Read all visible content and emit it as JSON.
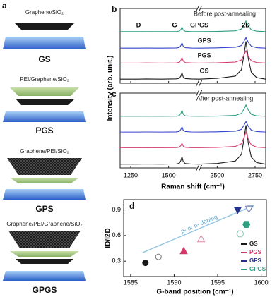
{
  "panel_a": {
    "label": "a",
    "items": [
      {
        "layers": "Graphene/SiO₂",
        "name": "GS"
      },
      {
        "layers": "PEI/Graphene/SiO₂",
        "name": "PGS"
      },
      {
        "layers": "Graphene/PEI/SiO₂",
        "name": "GPS"
      },
      {
        "layers": "Graphene/PEI/Graphene/SiO₂",
        "name": "GPGS"
      }
    ]
  },
  "chart_data": [
    {
      "type": "line",
      "panel_label": "b",
      "title": "Before post-annealing",
      "ylabel": "Intensity (arb. unit.)",
      "peak_labels": [
        "D",
        "G",
        "2D"
      ],
      "series_labels": true,
      "xtick_labels": false,
      "xlim": [
        1180,
        2820
      ],
      "xbreak": [
        1700,
        2380
      ],
      "xticks": [
        1250,
        1500,
        2500,
        2750
      ],
      "ylim": [
        0,
        10
      ],
      "x": [
        1180,
        1300,
        1350,
        1450,
        1550,
        1570,
        1580,
        1588,
        1596,
        1610,
        1650,
        1700,
        2380,
        2500,
        2620,
        2660,
        2675,
        2690,
        2705,
        2725,
        2760,
        2820
      ],
      "series": [
        {
          "name": "GS",
          "color": "#1a1a1a",
          "values": [
            0.55,
            0.55,
            0.57,
            0.55,
            0.58,
            0.65,
            0.93,
            1.4,
            0.85,
            0.62,
            0.57,
            0.55,
            0.55,
            0.65,
            0.95,
            1.81,
            3.58,
            5.6,
            3.33,
            1.46,
            0.75,
            0.55
          ]
        },
        {
          "name": "PGS",
          "color": "#d4386a",
          "values": [
            2.7,
            2.7,
            2.72,
            2.7,
            2.72,
            2.79,
            3.04,
            3.45,
            2.96,
            2.76,
            2.72,
            2.7,
            2.7,
            2.73,
            2.83,
            3.11,
            3.69,
            4.35,
            3.61,
            3.0,
            2.77,
            2.7
          ]
        },
        {
          "name": "GPS",
          "color": "#3344cc",
          "values": [
            4.7,
            4.7,
            4.71,
            4.7,
            4.72,
            4.78,
            5.02,
            5.4,
            4.95,
            4.76,
            4.71,
            4.7,
            4.7,
            4.73,
            4.81,
            5.05,
            5.54,
            6.1,
            5.47,
            4.95,
            4.76,
            4.7
          ]
        },
        {
          "name": "GPGS",
          "color": "#2f9e80",
          "values": [
            6.9,
            6.9,
            6.91,
            6.9,
            6.92,
            6.97,
            7.17,
            7.5,
            7.11,
            6.95,
            6.91,
            6.9,
            6.9,
            6.93,
            7.01,
            7.25,
            7.74,
            8.3,
            7.67,
            7.15,
            6.96,
            6.9
          ]
        }
      ]
    },
    {
      "type": "line",
      "panel_label": "c",
      "title": "After post-annealing",
      "xlabel": "Raman shift (cm⁻¹)",
      "series_labels": false,
      "xtick_labels": true,
      "xlim": [
        1180,
        2820
      ],
      "xbreak": [
        1700,
        2380
      ],
      "xticks": [
        1250,
        1500,
        2500,
        2750
      ],
      "ylim": [
        0,
        10
      ],
      "x": [
        1180,
        1300,
        1350,
        1450,
        1550,
        1570,
        1580,
        1588,
        1596,
        1610,
        1650,
        1700,
        2380,
        2500,
        2620,
        2660,
        2675,
        2690,
        2705,
        2725,
        2760,
        2820
      ],
      "series": [
        {
          "name": "GS",
          "color": "#1a1a1a",
          "values": [
            0.5,
            0.5,
            0.52,
            0.5,
            0.53,
            0.62,
            0.95,
            1.5,
            0.85,
            0.58,
            0.52,
            0.5,
            0.5,
            0.6,
            0.92,
            1.8,
            3.62,
            5.7,
            3.36,
            1.44,
            0.71,
            0.5
          ]
        },
        {
          "name": "PGS",
          "color": "#d4386a",
          "values": [
            2.7,
            2.7,
            2.71,
            2.7,
            2.72,
            2.77,
            2.97,
            3.3,
            2.91,
            2.75,
            2.71,
            2.7,
            2.7,
            2.74,
            2.87,
            3.23,
            3.96,
            4.8,
            3.86,
            3.08,
            2.78,
            2.7
          ]
        },
        {
          "name": "GPS",
          "color": "#3344cc",
          "values": [
            4.8,
            4.8,
            4.81,
            4.8,
            4.82,
            4.88,
            5.12,
            5.5,
            5.05,
            4.86,
            4.81,
            4.8,
            4.8,
            4.83,
            4.91,
            5.15,
            5.64,
            6.2,
            5.57,
            5.05,
            4.86,
            4.8
          ]
        },
        {
          "name": "GPGS",
          "color": "#2f9e80",
          "values": [
            6.9,
            6.9,
            6.92,
            6.9,
            6.92,
            7.0,
            7.26,
            7.7,
            7.18,
            6.96,
            6.92,
            6.9,
            6.9,
            6.93,
            7.02,
            7.28,
            7.8,
            8.4,
            7.73,
            7.17,
            6.96,
            6.9
          ]
        }
      ]
    },
    {
      "type": "scatter",
      "panel_label": "d",
      "xlabel": "G-band position (cm⁻¹)",
      "ylabel": "ID/I2D",
      "annotation": "p- or n- doping",
      "legend": "lower right",
      "xlim": [
        1584.2,
        1600.6
      ],
      "xticks": [
        1585,
        1590,
        1595,
        1600
      ],
      "ylim": [
        0.12,
        1.02
      ],
      "yticks": [
        0.3,
        0.6,
        0.9
      ],
      "series": [
        {
          "name": "GS",
          "color": "#1a1a1a",
          "marker": "circle",
          "filled": [
            true,
            false
          ],
          "x": [
            1586.7,
            1588.2
          ],
          "values": [
            0.28,
            0.35
          ]
        },
        {
          "name": "PGS",
          "color": "#d4386a",
          "marker": "triangle",
          "filled": [
            true,
            false
          ],
          "x": [
            1591.1,
            1593.1
          ],
          "values": [
            0.42,
            0.56
          ]
        },
        {
          "name": "GPS",
          "color": "#26328a",
          "marker": "triangle-down",
          "filled": [
            true,
            false
          ],
          "x": [
            1597.3,
            1598.6
          ],
          "values": [
            0.9,
            0.91
          ]
        },
        {
          "name": "GPGS",
          "color": "#2f9e80",
          "marker": "hexagon",
          "filled": [
            true,
            false
          ],
          "x": [
            1598.3,
            1597.6
          ],
          "values": [
            0.73,
            0.62
          ]
        }
      ]
    }
  ]
}
